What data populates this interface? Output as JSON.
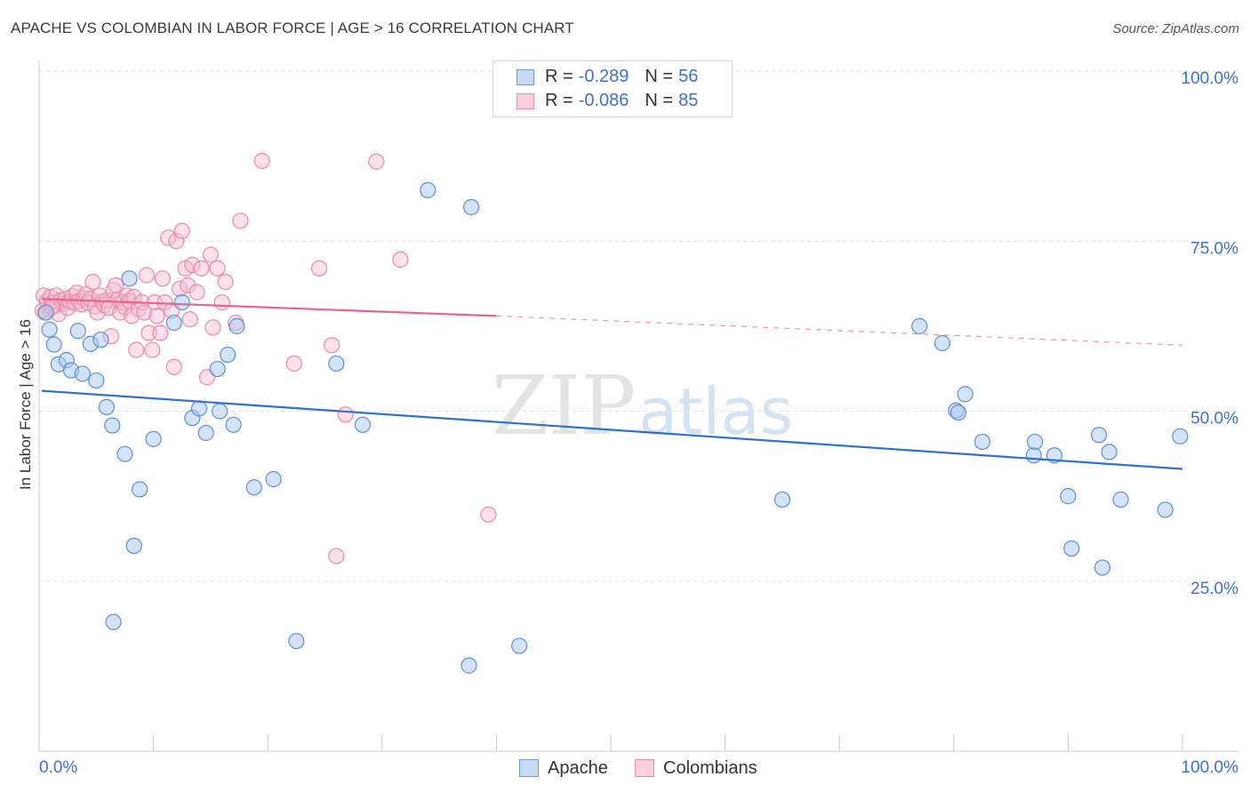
{
  "title": "APACHE VS COLOMBIAN IN LABOR FORCE | AGE > 16 CORRELATION CHART",
  "source": "Source: ZipAtlas.com",
  "watermark": {
    "zip": "ZIP",
    "atlas": "atlas"
  },
  "legend": {
    "apache": {
      "r_label": "R =",
      "r_value": "-0.289",
      "n_label": "N =",
      "n_value": "56"
    },
    "colombians": {
      "r_label": "R =",
      "r_value": "-0.086",
      "n_label": "N =",
      "n_value": "85"
    }
  },
  "bottom_legend": {
    "apache": "Apache",
    "colombians": "Colombians"
  },
  "colors": {
    "apache_fill": "#a9c8f0",
    "apache_stroke": "#5b8fd6",
    "apache_line": "#2f6fd0",
    "colombians_fill": "#f8bdd0",
    "colombians_stroke": "#e98aa9",
    "colombians_line": "#e8648e",
    "axis_label": "#3b72c9",
    "grid": "#e2e2e2"
  },
  "chart_data": {
    "type": "scatter",
    "title": "APACHE VS COLOMBIAN IN LABOR FORCE | AGE > 16 CORRELATION CHART",
    "xlabel": "",
    "ylabel": "In Labor Force | Age > 16",
    "xlim": [
      0,
      100
    ],
    "ylim": [
      0,
      105
    ],
    "x_tick_labels": [
      "0.0%",
      "100.0%"
    ],
    "y_ticks": [
      25,
      50,
      75,
      100
    ],
    "y_tick_labels": [
      "25.0%",
      "50.0%",
      "75.0%",
      "100.0%"
    ],
    "series": [
      {
        "name": "Apache",
        "r": -0.289,
        "n": 56,
        "trend": {
          "x": [
            0,
            100
          ],
          "y": [
            53.0,
            41.5
          ]
        },
        "points": [
          [
            0.6,
            64.5
          ],
          [
            0.9,
            62.0
          ],
          [
            1.3,
            59.8
          ],
          [
            1.7,
            56.9
          ],
          [
            2.4,
            57.5
          ],
          [
            2.8,
            56.0
          ],
          [
            3.4,
            61.8
          ],
          [
            3.8,
            55.5
          ],
          [
            4.5,
            59.9
          ],
          [
            5.0,
            54.5
          ],
          [
            5.4,
            60.5
          ],
          [
            5.9,
            50.6
          ],
          [
            6.4,
            47.9
          ],
          [
            7.5,
            43.7
          ],
          [
            7.9,
            69.5
          ],
          [
            8.3,
            30.2
          ],
          [
            8.8,
            38.5
          ],
          [
            10.0,
            45.9
          ],
          [
            11.8,
            63.0
          ],
          [
            12.5,
            66.0
          ],
          [
            13.4,
            49.0
          ],
          [
            14.0,
            50.4
          ],
          [
            14.6,
            46.8
          ],
          [
            15.6,
            56.2
          ],
          [
            15.8,
            50.0
          ],
          [
            16.5,
            58.3
          ],
          [
            17.0,
            48.0
          ],
          [
            17.3,
            62.5
          ],
          [
            18.8,
            38.8
          ],
          [
            20.5,
            40.0
          ],
          [
            22.5,
            16.2
          ],
          [
            26.0,
            57.0
          ],
          [
            28.3,
            48.0
          ],
          [
            34.0,
            82.5
          ],
          [
            37.6,
            12.6
          ],
          [
            37.8,
            80.0
          ],
          [
            42.0,
            15.5
          ],
          [
            65.0,
            37.0
          ],
          [
            77.0,
            62.5
          ],
          [
            79.0,
            60.0
          ],
          [
            80.2,
            50.1
          ],
          [
            80.4,
            49.8
          ],
          [
            81.0,
            52.5
          ],
          [
            82.5,
            45.5
          ],
          [
            87.0,
            43.5
          ],
          [
            87.1,
            45.5
          ],
          [
            88.8,
            43.5
          ],
          [
            90.0,
            37.5
          ],
          [
            90.3,
            29.8
          ],
          [
            92.7,
            46.5
          ],
          [
            93.0,
            27.0
          ],
          [
            93.6,
            44.0
          ],
          [
            94.6,
            37.0
          ],
          [
            98.5,
            35.5
          ],
          [
            99.8,
            46.3
          ],
          [
            6.5,
            19.0
          ]
        ]
      },
      {
        "name": "Colombians",
        "r": -0.086,
        "n": 85,
        "trend": {
          "x": [
            0,
            40
          ],
          "y": [
            66.5,
            64.0
          ],
          "dashed_x": [
            40,
            100
          ],
          "dashed_y": [
            64.0,
            59.7
          ]
        },
        "points": [
          [
            0.4,
            67.0
          ],
          [
            0.5,
            64.5
          ],
          [
            0.7,
            66.2
          ],
          [
            0.9,
            65.0
          ],
          [
            1.0,
            66.8
          ],
          [
            1.2,
            66.0
          ],
          [
            1.4,
            65.5
          ],
          [
            1.5,
            67.0
          ],
          [
            1.7,
            64.3
          ],
          [
            1.9,
            66.3
          ],
          [
            2.1,
            65.8
          ],
          [
            2.3,
            66.5
          ],
          [
            2.5,
            65.2
          ],
          [
            2.7,
            66.1
          ],
          [
            2.9,
            66.9
          ],
          [
            3.1,
            65.9
          ],
          [
            3.3,
            67.4
          ],
          [
            3.5,
            66.2
          ],
          [
            3.7,
            65.7
          ],
          [
            3.9,
            66.6
          ],
          [
            4.1,
            67.2
          ],
          [
            4.3,
            65.9
          ],
          [
            4.5,
            66.5
          ],
          [
            4.7,
            69.0
          ],
          [
            4.9,
            65.4
          ],
          [
            5.1,
            64.5
          ],
          [
            5.3,
            67.0
          ],
          [
            5.5,
            66.1
          ],
          [
            5.7,
            65.6
          ],
          [
            5.9,
            66.3
          ],
          [
            6.1,
            65.2
          ],
          [
            6.3,
            61.0
          ],
          [
            6.5,
            67.8
          ],
          [
            6.7,
            68.5
          ],
          [
            6.9,
            66.4
          ],
          [
            7.1,
            64.5
          ],
          [
            7.3,
            66.0
          ],
          [
            7.5,
            65.3
          ],
          [
            7.7,
            67.0
          ],
          [
            7.9,
            66.2
          ],
          [
            8.1,
            64.0
          ],
          [
            8.3,
            66.8
          ],
          [
            8.5,
            59.0
          ],
          [
            8.7,
            65.0
          ],
          [
            9.0,
            66.0
          ],
          [
            9.2,
            64.5
          ],
          [
            9.4,
            70.0
          ],
          [
            9.6,
            61.5
          ],
          [
            9.9,
            59.0
          ],
          [
            10.1,
            66.0
          ],
          [
            10.3,
            64.0
          ],
          [
            10.6,
            61.5
          ],
          [
            10.8,
            69.5
          ],
          [
            11.0,
            66.0
          ],
          [
            11.3,
            75.5
          ],
          [
            11.6,
            64.8
          ],
          [
            11.8,
            56.5
          ],
          [
            12.0,
            75.0
          ],
          [
            12.3,
            68.0
          ],
          [
            12.5,
            76.5
          ],
          [
            12.8,
            71.0
          ],
          [
            13.0,
            68.5
          ],
          [
            13.2,
            63.5
          ],
          [
            13.4,
            71.5
          ],
          [
            13.8,
            67.5
          ],
          [
            14.2,
            71.0
          ],
          [
            14.7,
            55.0
          ],
          [
            15.0,
            73.0
          ],
          [
            15.2,
            62.3
          ],
          [
            15.6,
            71.0
          ],
          [
            16.0,
            66.0
          ],
          [
            16.3,
            69.0
          ],
          [
            17.2,
            63.0
          ],
          [
            17.6,
            78.0
          ],
          [
            19.5,
            86.8
          ],
          [
            22.3,
            57.0
          ],
          [
            24.5,
            71.0
          ],
          [
            25.6,
            59.7
          ],
          [
            26.0,
            28.7
          ],
          [
            26.8,
            49.5
          ],
          [
            29.5,
            86.7
          ],
          [
            31.6,
            72.3
          ],
          [
            39.3,
            34.8
          ],
          [
            0.3,
            64.8
          ],
          [
            1.1,
            65.3
          ]
        ]
      }
    ]
  }
}
